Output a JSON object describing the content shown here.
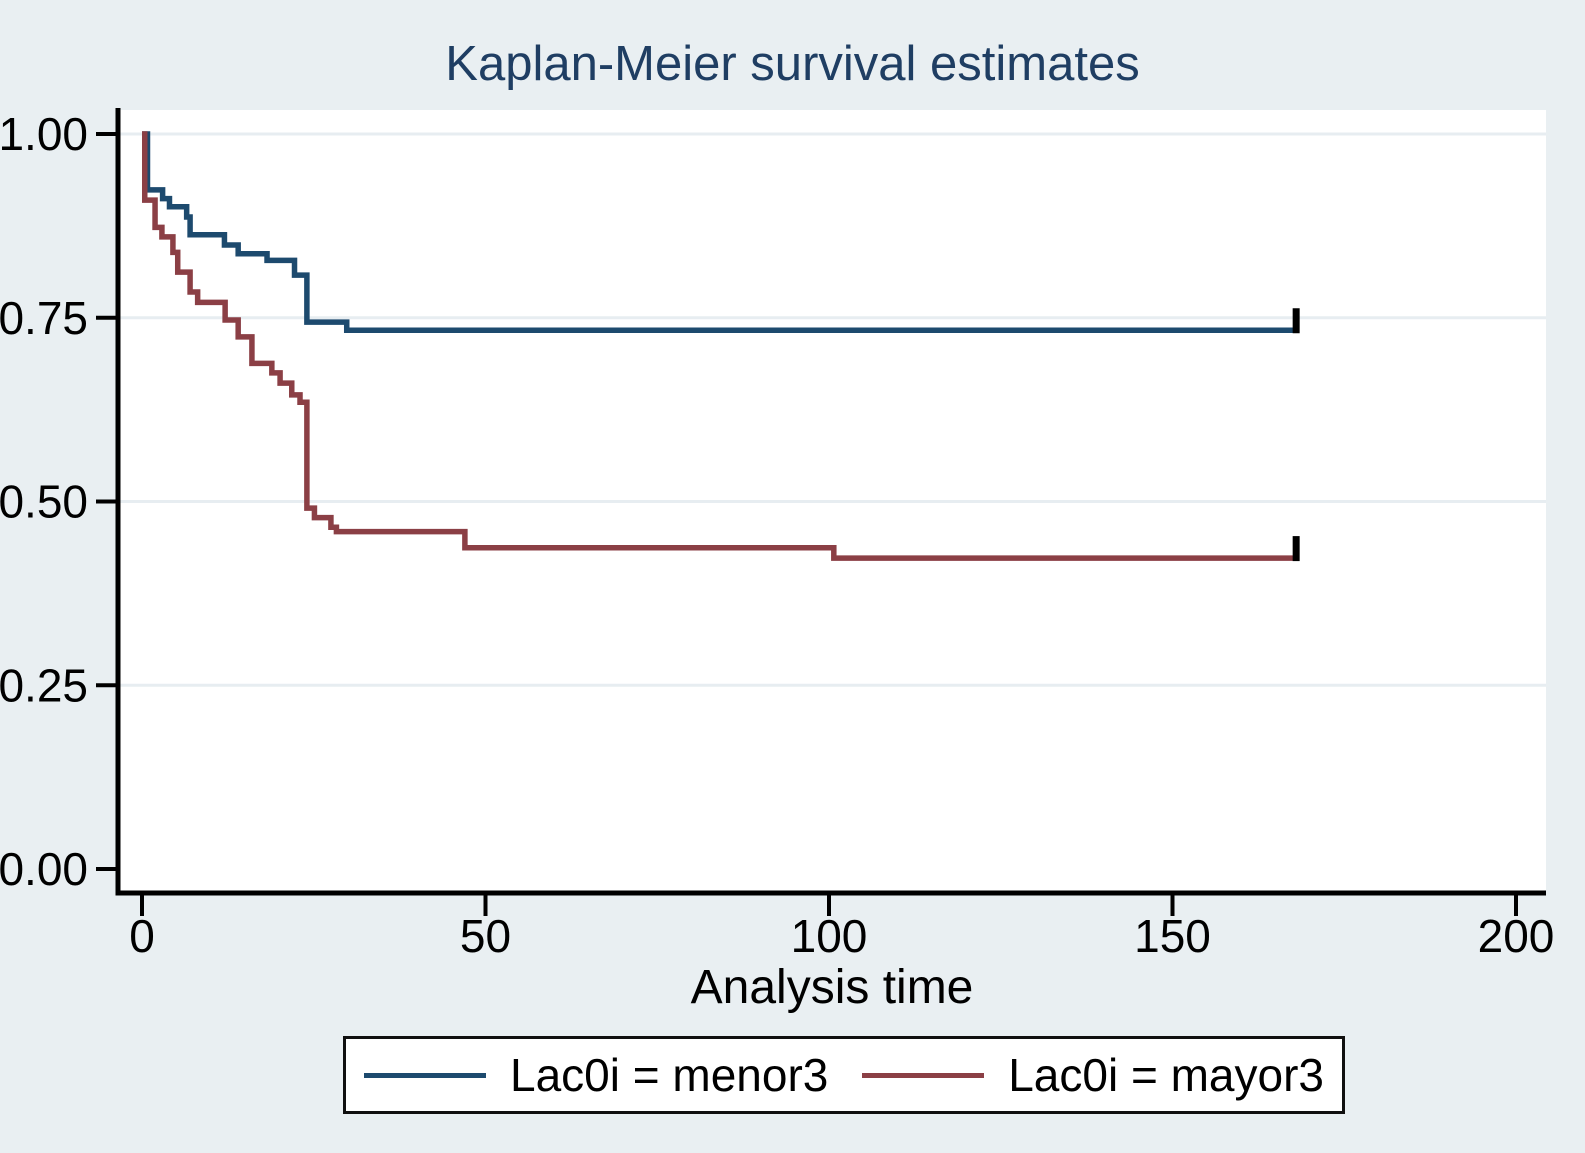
{
  "title": "Kaplan-Meier survival estimates",
  "x_axis": {
    "label": "Analysis time",
    "tick_labels": [
      "0",
      "50",
      "100",
      "150",
      "200"
    ],
    "tick_values": [
      0,
      50,
      100,
      150,
      200
    ]
  },
  "y_axis": {
    "tick_labels": [
      "1.00",
      "0.75",
      "0.50",
      "0.25",
      "0.00"
    ],
    "tick_values": [
      1,
      0.75,
      0.5,
      0.25,
      0
    ]
  },
  "legend": {
    "items": [
      {
        "label": "Lac0i = menor3"
      },
      {
        "label": "Lac0i = mayor3"
      }
    ]
  },
  "colors": {
    "background": "#e9eff2",
    "plot_background": "#ffffff",
    "gridline": "#e7edf1",
    "axis": "#000000",
    "title": "#1f3e63",
    "menor3_line": "#1d4a6e",
    "mayor3_line": "#8b3f45",
    "censor_tick": "#000000"
  },
  "chart_data": {
    "type": "line",
    "style": "kaplan-meier-step",
    "title": "Kaplan-Meier survival estimates",
    "xlabel": "Analysis time",
    "ylabel": "",
    "xlim": [
      0,
      204
    ],
    "ylim": [
      0,
      1
    ],
    "grid": "horizontal",
    "legend_position": "bottom",
    "series": [
      {
        "name": "Lac0i = menor3",
        "color": "#1d4a6e",
        "end_time": 168,
        "censored_at_end": true,
        "steps": [
          [
            0,
            1.0
          ],
          [
            0.8,
            0.924
          ],
          [
            3,
            0.912
          ],
          [
            4,
            0.901
          ],
          [
            6.5,
            0.887
          ],
          [
            7,
            0.863
          ],
          [
            12,
            0.849
          ],
          [
            14,
            0.837
          ],
          [
            18.2,
            0.828
          ],
          [
            22.2,
            0.808
          ],
          [
            24,
            0.744
          ],
          [
            29.8,
            0.733
          ]
        ]
      },
      {
        "name": "Lac0i = mayor3",
        "color": "#8b3f45",
        "end_time": 168,
        "censored_at_end": true,
        "steps": [
          [
            0,
            1.0
          ],
          [
            0.4,
            0.91
          ],
          [
            1.9,
            0.873
          ],
          [
            2.9,
            0.86
          ],
          [
            4.5,
            0.839
          ],
          [
            5.2,
            0.812
          ],
          [
            7,
            0.785
          ],
          [
            8.1,
            0.771
          ],
          [
            12.1,
            0.747
          ],
          [
            14,
            0.724
          ],
          [
            16,
            0.688
          ],
          [
            18.9,
            0.675
          ],
          [
            20.1,
            0.661
          ],
          [
            21.8,
            0.645
          ],
          [
            23,
            0.635
          ],
          [
            24,
            0.491
          ],
          [
            25.1,
            0.478
          ],
          [
            27.5,
            0.465
          ],
          [
            28.3,
            0.459
          ],
          [
            47,
            0.437
          ],
          [
            100.7,
            0.423
          ]
        ]
      }
    ]
  }
}
